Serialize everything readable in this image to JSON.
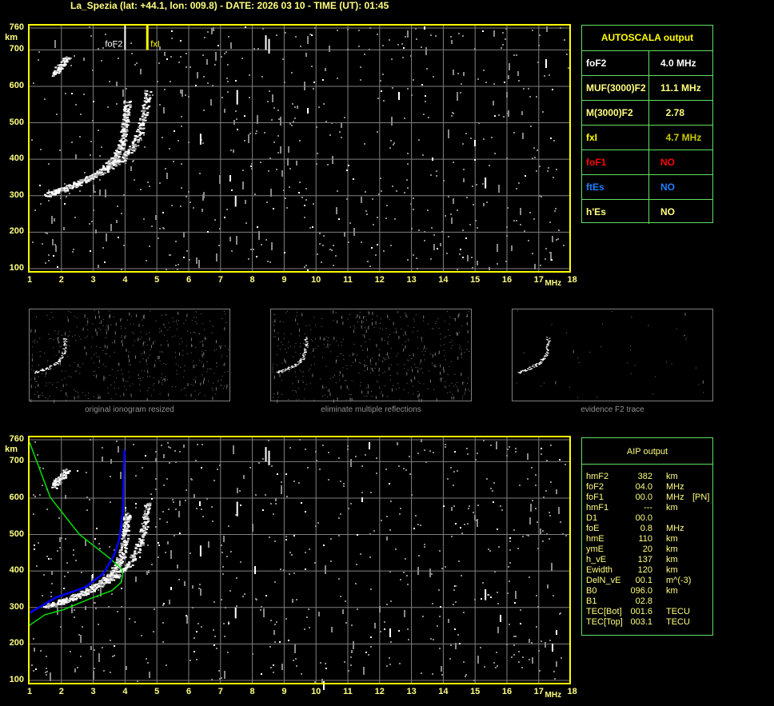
{
  "title": "La_Spezia (lat: +44.1, lon: 009.8) - DATE: 2026 03 10 - TIME (UT): 01:45",
  "colors": {
    "axis": "#ffff00",
    "grid": "#808080",
    "label": "#ffff80",
    "table_border": "#60e060",
    "blue_trace": "#0000ff",
    "green_profile": "#00e000",
    "red": "#ff0000",
    "blue": "#1e7fff",
    "olive": "#c8c800"
  },
  "autoscala": {
    "header": "AUTOSCALA output",
    "rows": [
      {
        "key": "foF2",
        "value": "4.0 MHz",
        "key_color": "#ffffff",
        "value_color": "#ffffff"
      },
      {
        "key": "MUF(3000)F2",
        "value": "11.1 MHz",
        "key_color": "#ffff80",
        "value_color": "#ffff80"
      },
      {
        "key": "M(3000)F2",
        "value": "  2.78",
        "key_color": "#ffff80",
        "value_color": "#ffff80"
      },
      {
        "key": "fxI",
        "value": "  4.7 MHz",
        "key_color": "#ffff00",
        "value_color": "#c8c800"
      },
      {
        "key": "foF1",
        "value": "NO",
        "key_color": "#ff0000",
        "value_color": "#ff0000"
      },
      {
        "key": "ftEs",
        "value": "NO",
        "key_color": "#1e7fff",
        "value_color": "#1e7fff"
      },
      {
        "key": "h'Es",
        "value": "NO",
        "key_color": "#ffff80",
        "value_color": "#ffff80"
      }
    ]
  },
  "aip": {
    "header": "AIP output",
    "rows": [
      {
        "key": "hmF2",
        "value": "382",
        "unit": "km",
        "extra": ""
      },
      {
        "key": "foF2",
        "value": "04.0",
        "unit": "MHz",
        "extra": ""
      },
      {
        "key": "foF1",
        "value": "00.0",
        "unit": "MHz",
        "extra": "[PN]"
      },
      {
        "key": "hmF1",
        "value": "---",
        "unit": "km",
        "extra": ""
      },
      {
        "key": "D1",
        "value": "00.0",
        "unit": "",
        "extra": ""
      },
      {
        "key": "foE",
        "value": "0.8",
        "unit": "MHz",
        "extra": ""
      },
      {
        "key": "hmE",
        "value": "110",
        "unit": "km",
        "extra": ""
      },
      {
        "key": "ymE",
        "value": "20",
        "unit": "km",
        "extra": ""
      },
      {
        "key": "h_vE",
        "value": "137",
        "unit": "km",
        "extra": ""
      },
      {
        "key": "Ewidth",
        "value": "120",
        "unit": "km",
        "extra": ""
      },
      {
        "key": "DelN_vE",
        "value": "00.1",
        "unit": "m^(-3)",
        "extra": ""
      },
      {
        "key": "B0",
        "value": "096.0",
        "unit": "km",
        "extra": ""
      },
      {
        "key": "B1",
        "value": "02.8",
        "unit": "",
        "extra": ""
      },
      {
        "key": "TEC[Bot]",
        "value": "001.6",
        "unit": "TECU",
        "extra": ""
      },
      {
        "key": "TEC[Top]",
        "value": "003.1",
        "unit": "TECU",
        "extra": ""
      }
    ]
  },
  "thumbnails": [
    {
      "caption": "original ionogram resized"
    },
    {
      "caption": "eliminate multiple reflections"
    },
    {
      "caption": "evidence F2 trace"
    }
  ],
  "chart_data": [
    {
      "type": "scatter",
      "name_hint": "ionogram-autoscala",
      "xlabel": "MHz",
      "ylabel": "km",
      "xlim": [
        1,
        18
      ],
      "ylim": [
        100,
        760
      ],
      "x_ticks": [
        "1",
        "2",
        "3",
        "4",
        "5",
        "6",
        "7",
        "8",
        "9",
        "10",
        "11",
        "12",
        "13",
        "14",
        "15",
        "16",
        "17",
        "18"
      ],
      "y_ticks": [
        "760",
        "700",
        "600",
        "500",
        "400",
        "300",
        "200",
        "100"
      ],
      "grid": true,
      "markers": [
        {
          "label": "foF2",
          "x": 4.0,
          "color": "#ffffff"
        },
        {
          "label": "fxI",
          "x": 4.7,
          "color": "#ffff00"
        }
      ],
      "traces": {
        "o_trace": [
          [
            1.5,
            305
          ],
          [
            2.0,
            318
          ],
          [
            2.5,
            335
          ],
          [
            3.0,
            355
          ],
          [
            3.4,
            380
          ],
          [
            3.7,
            410
          ],
          [
            3.9,
            450
          ],
          [
            4.0,
            510
          ],
          [
            4.05,
            560
          ]
        ],
        "x_trace": [
          [
            3.3,
            370
          ],
          [
            3.8,
            395
          ],
          [
            4.2,
            430
          ],
          [
            4.45,
            480
          ],
          [
            4.6,
            530
          ],
          [
            4.7,
            590
          ]
        ],
        "second_hop": [
          [
            1.75,
            635
          ],
          [
            1.95,
            655
          ],
          [
            2.15,
            680
          ]
        ]
      }
    },
    {
      "type": "line",
      "name_hint": "ionogram-aip",
      "xlabel": "MHz",
      "ylabel": "km",
      "xlim": [
        1,
        18
      ],
      "ylim": [
        100,
        760
      ],
      "x_ticks": [
        "1",
        "2",
        "3",
        "4",
        "5",
        "6",
        "7",
        "8",
        "9",
        "10",
        "11",
        "12",
        "13",
        "14",
        "15",
        "16",
        "17",
        "18"
      ],
      "y_ticks": [
        "760",
        "700",
        "600",
        "500",
        "400",
        "300",
        "200",
        "100"
      ],
      "grid": true,
      "series": [
        {
          "color": "#00e000",
          "points": [
            [
              1.0,
              753
            ],
            [
              1.65,
              602
            ],
            [
              2.57,
              500
            ],
            [
              3.49,
              437
            ],
            [
              3.91,
              404
            ],
            [
              3.93,
              390
            ],
            [
              3.87,
              368
            ],
            [
              3.58,
              346
            ],
            [
              2.9,
              324
            ],
            [
              2.07,
              294
            ],
            [
              1.48,
              280
            ],
            [
              0.98,
              250
            ]
          ]
        },
        {
          "color": "#0000ff",
          "points": [
            [
              1.0,
              285
            ],
            [
              1.82,
              327
            ],
            [
              2.74,
              355
            ],
            [
              3.32,
              393
            ],
            [
              3.66,
              444
            ],
            [
              3.83,
              490
            ],
            [
              3.93,
              564
            ],
            [
              3.98,
              729
            ]
          ]
        }
      ],
      "traces": {
        "o_trace": [
          [
            1.5,
            305
          ],
          [
            2.0,
            318
          ],
          [
            2.5,
            335
          ],
          [
            3.0,
            355
          ],
          [
            3.4,
            380
          ],
          [
            3.7,
            410
          ],
          [
            3.9,
            450
          ],
          [
            4.0,
            510
          ],
          [
            4.05,
            560
          ]
        ],
        "x_trace": [
          [
            3.3,
            370
          ],
          [
            3.8,
            395
          ],
          [
            4.2,
            430
          ],
          [
            4.45,
            480
          ],
          [
            4.6,
            530
          ],
          [
            4.7,
            590
          ]
        ],
        "second_hop": [
          [
            1.75,
            635
          ],
          [
            1.95,
            655
          ],
          [
            2.15,
            680
          ]
        ]
      }
    }
  ]
}
